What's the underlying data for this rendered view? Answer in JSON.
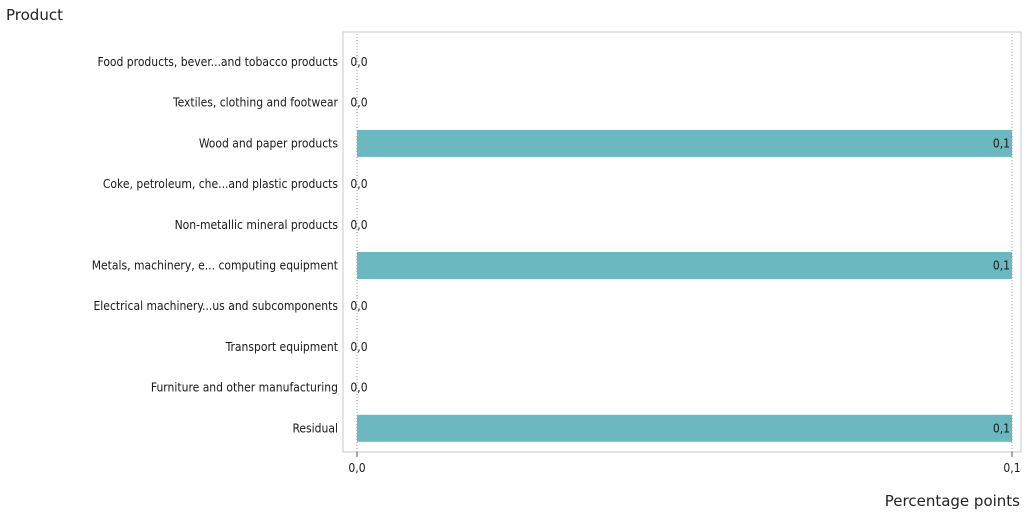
{
  "chart_data": {
    "type": "bar",
    "orientation": "horizontal",
    "title": "Product",
    "xlabel": "Percentage points",
    "ylabel": "",
    "categories": [
      "Food products, bever...and tobacco products",
      "Textiles, clothing and footwear",
      "Wood and paper products",
      "Coke, petroleum, che...and plastic products",
      "Non-metallic mineral products",
      "Metals, machinery, e... computing equipment",
      "Electrical machinery...us and subcomponents",
      "Transport equipment",
      "Furniture and other manufacturing",
      "Residual"
    ],
    "values": [
      0.0,
      0.0,
      0.1,
      0.0,
      0.0,
      0.1,
      0.0,
      0.0,
      0.0,
      0.1
    ],
    "value_labels": [
      "0,0",
      "0,0",
      "0,1",
      "0,0",
      "0,0",
      "0,1",
      "0,0",
      "0,0",
      "0,0",
      "0,1"
    ],
    "xlim": [
      0.0,
      0.1
    ],
    "xticks": [
      0.0,
      0.1
    ],
    "xtick_labels": [
      "0,0",
      "0,1"
    ],
    "bar_color": "#6cb8c0",
    "grid": "dotted vertical at ticks",
    "legend": "none"
  }
}
